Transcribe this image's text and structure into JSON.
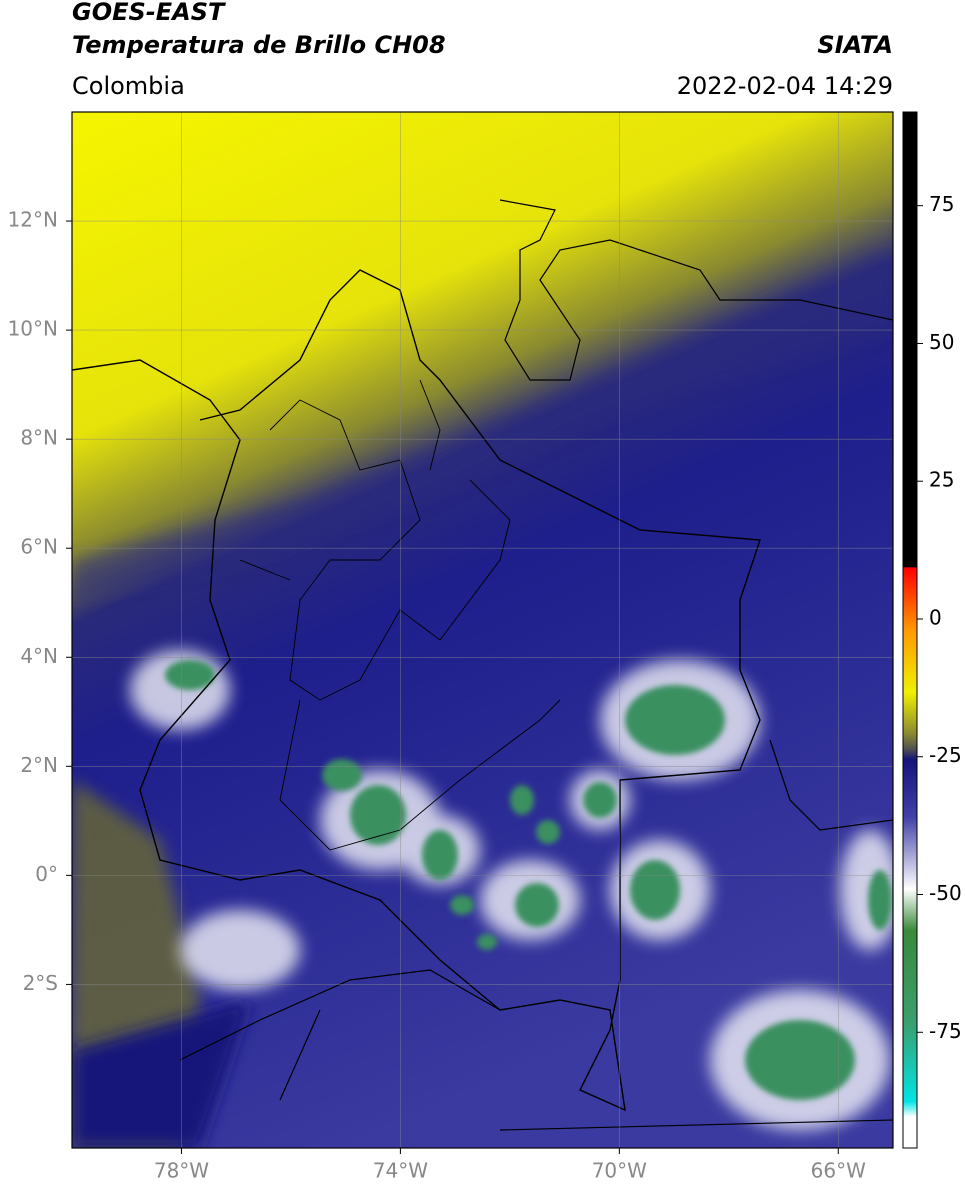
{
  "header": {
    "satellite": "GOES-EAST",
    "product": "Temperatura de Brillo CH08",
    "region": "Colombia",
    "source": "SIATA",
    "datetime": "2022-02-04 14:29"
  },
  "map": {
    "lonlim": [
      -80,
      -65
    ],
    "latlim": [
      -5,
      14
    ],
    "lonticks": [
      {
        "value": -78,
        "label": "78°W"
      },
      {
        "value": -74,
        "label": "74°W"
      },
      {
        "value": -70,
        "label": "70°W"
      },
      {
        "value": -66,
        "label": "66°W"
      }
    ],
    "latticks": [
      {
        "value": 12,
        "label": "12°N"
      },
      {
        "value": 10,
        "label": "10°N"
      },
      {
        "value": 8,
        "label": "8°N"
      },
      {
        "value": 6,
        "label": "6°N"
      },
      {
        "value": 4,
        "label": "4°N"
      },
      {
        "value": 2,
        "label": "2°N"
      },
      {
        "value": 0,
        "label": "0°"
      },
      {
        "value": -2,
        "label": "2°S"
      }
    ],
    "grid": true
  },
  "colorbar": {
    "lim": [
      -96,
      92
    ],
    "ticks": [
      75,
      50,
      25,
      0,
      -25,
      -50,
      -75
    ]
  }
}
